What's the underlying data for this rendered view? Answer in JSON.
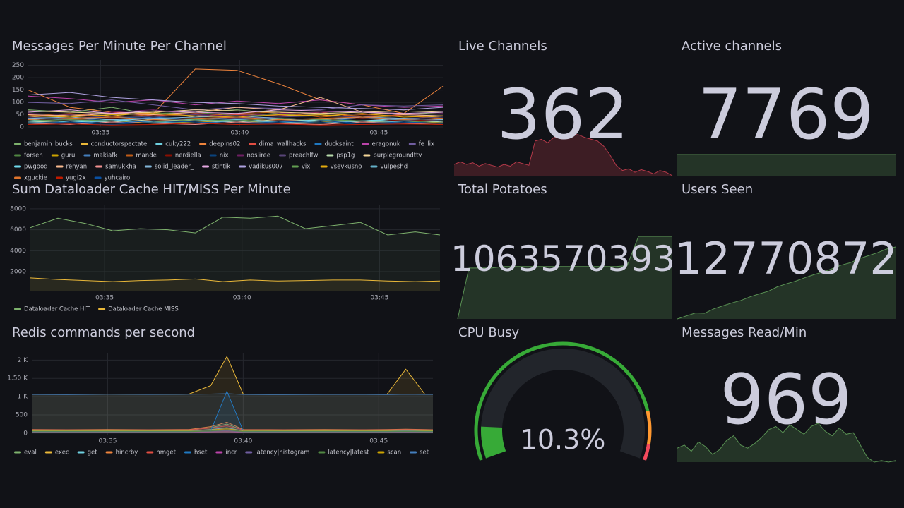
{
  "chart_data": [
    {
      "type": "line",
      "title": "Messages Per Minute Per Channel",
      "x": [
        32.4,
        33.9,
        35.4,
        36.9,
        38.4,
        39.9,
        41.4,
        42.9,
        44.4,
        45.9,
        47.3
      ],
      "xlim": [
        32.4,
        47.3
      ],
      "xticks": [
        {
          "value": 35,
          "label": "03:35"
        },
        {
          "value": 40,
          "label": "03:40"
        },
        {
          "value": 45,
          "label": "03:45"
        }
      ],
      "ylim": [
        0,
        272
      ],
      "yticks": [
        0,
        50,
        100,
        150,
        200,
        250
      ],
      "grid": true,
      "fill_opacity": 0,
      "series": [
        {
          "name": "benjamin_bucks",
          "color": "#7EB26D",
          "values": [
            70,
            60,
            80,
            50,
            60,
            70,
            55,
            60,
            65,
            50,
            60
          ]
        },
        {
          "name": "conductorspectate",
          "color": "#EAB839",
          "values": [
            40,
            50,
            45,
            60,
            40,
            55,
            45,
            50,
            40,
            45,
            40
          ]
        },
        {
          "name": "cuky222",
          "color": "#6ED0E0",
          "values": [
            20,
            25,
            30,
            20,
            25,
            30,
            25,
            20,
            25,
            30,
            20
          ]
        },
        {
          "name": "deepins02",
          "color": "#EF843C",
          "values": [
            150,
            80,
            60,
            55,
            235,
            230,
            175,
            110,
            90,
            55,
            165
          ]
        },
        {
          "name": "dima_wallhacks",
          "color": "#E24D42",
          "values": [
            50,
            40,
            60,
            45,
            55,
            50,
            45,
            60,
            40,
            50,
            45
          ]
        },
        {
          "name": "ducksaint",
          "color": "#1F78C1",
          "values": [
            30,
            35,
            25,
            40,
            30,
            35,
            30,
            25,
            35,
            30,
            25
          ]
        },
        {
          "name": "eragonuk",
          "color": "#BA43A9",
          "values": [
            125,
            115,
            100,
            110,
            90,
            105,
            95,
            110,
            90,
            80,
            85
          ]
        },
        {
          "name": "fe_lix__",
          "color": "#705DA0",
          "values": [
            100,
            95,
            110,
            90,
            70,
            80,
            75,
            70,
            90,
            85,
            90
          ]
        },
        {
          "name": "forsen",
          "color": "#508642",
          "values": [
            60,
            65,
            50,
            55,
            60,
            45,
            50,
            55,
            60,
            50,
            45
          ]
        },
        {
          "name": "guru",
          "color": "#CCA300",
          "values": [
            15,
            20,
            25,
            15,
            20,
            25,
            15,
            20,
            25,
            15,
            20
          ]
        },
        {
          "name": "makiafk",
          "color": "#447EBC",
          "values": [
            35,
            30,
            40,
            35,
            30,
            40,
            35,
            30,
            40,
            35,
            30
          ]
        },
        {
          "name": "mande",
          "color": "#C15C17",
          "values": [
            45,
            55,
            40,
            50,
            45,
            55,
            60,
            40,
            50,
            45,
            35
          ]
        },
        {
          "name": "nerdiella",
          "color": "#890F02",
          "values": [
            25,
            30,
            35,
            25,
            30,
            35,
            25,
            30,
            35,
            25,
            30
          ]
        },
        {
          "name": "nix",
          "color": "#0A437C",
          "values": [
            10,
            15,
            10,
            20,
            15,
            10,
            15,
            20,
            10,
            15,
            10
          ]
        },
        {
          "name": "nosliree",
          "color": "#6D1F62",
          "values": [
            55,
            50,
            60,
            70,
            50,
            45,
            55,
            60,
            65,
            50,
            55
          ]
        },
        {
          "name": "preachlfw",
          "color": "#584477",
          "values": [
            40,
            35,
            45,
            40,
            50,
            35,
            40,
            45,
            40,
            35,
            40
          ]
        },
        {
          "name": "psp1g",
          "color": "#B7DBAB",
          "values": [
            20,
            25,
            20,
            30,
            25,
            20,
            30,
            25,
            20,
            25,
            20
          ]
        },
        {
          "name": "purplegroundttv",
          "color": "#F4D598",
          "values": [
            65,
            60,
            55,
            60,
            70,
            65,
            60,
            55,
            60,
            65,
            60
          ]
        },
        {
          "name": "pwgood",
          "color": "#70DBED",
          "values": [
            30,
            20,
            25,
            35,
            30,
            25,
            20,
            30,
            25,
            35,
            30
          ]
        },
        {
          "name": "renyan",
          "color": "#F9BA8F",
          "values": [
            50,
            45,
            55,
            50,
            60,
            80,
            70,
            120,
            60,
            50,
            45
          ]
        },
        {
          "name": "samukkha",
          "color": "#F29191",
          "values": [
            15,
            10,
            20,
            15,
            10,
            20,
            15,
            10,
            20,
            15,
            10
          ]
        },
        {
          "name": "solid_leader_",
          "color": "#82B5D8",
          "values": [
            35,
            40,
            30,
            35,
            40,
            45,
            35,
            30,
            40,
            35,
            30
          ]
        },
        {
          "name": "stintik",
          "color": "#E5A8E2",
          "values": [
            60,
            70,
            55,
            65,
            60,
            55,
            70,
            65,
            60,
            55,
            60
          ]
        },
        {
          "name": "vadikus007",
          "color": "#AEA2E0",
          "values": [
            130,
            140,
            120,
            110,
            100,
            95,
            85,
            80,
            75,
            70,
            80
          ]
        },
        {
          "name": "vixi",
          "color": "#629E51",
          "values": [
            25,
            30,
            25,
            20,
            30,
            25,
            35,
            30,
            25,
            20,
            25
          ]
        },
        {
          "name": "vsevkusno",
          "color": "#E5AC0E",
          "values": [
            45,
            40,
            50,
            55,
            45,
            40,
            50,
            45,
            55,
            40,
            45
          ]
        },
        {
          "name": "vulpeshd",
          "color": "#64B0C8",
          "values": [
            20,
            15,
            25,
            20,
            15,
            25,
            20,
            15,
            25,
            20,
            15
          ]
        },
        {
          "name": "xguckie",
          "color": "#E0752D",
          "values": [
            30,
            35,
            40,
            30,
            35,
            40,
            30,
            35,
            40,
            30,
            35
          ]
        },
        {
          "name": "yugi2x",
          "color": "#BF1B00",
          "values": [
            10,
            12,
            8,
            10,
            15,
            10,
            12,
            8,
            10,
            12,
            10
          ]
        },
        {
          "name": "yuhcairo",
          "color": "#0A50A1",
          "values": [
            15,
            20,
            15,
            25,
            20,
            15,
            20,
            25,
            15,
            20,
            15
          ]
        }
      ]
    },
    {
      "type": "line",
      "title": "Sum Dataloader Cache HIT/MISS Per Minute",
      "x": [
        32.3,
        33.3,
        34.3,
        35.3,
        36.3,
        37.3,
        38.3,
        39.3,
        40.3,
        41.3,
        42.3,
        43.3,
        44.3,
        45.3,
        46.3,
        47.2
      ],
      "xlim": [
        32.3,
        47.2
      ],
      "xticks": [
        {
          "value": 35,
          "label": "03:35"
        },
        {
          "value": 40,
          "label": "03:40"
        },
        {
          "value": 45,
          "label": "03:45"
        }
      ],
      "ylim": [
        180,
        8400
      ],
      "yticks": [
        2000,
        4000,
        6000,
        8000
      ],
      "grid": true,
      "fill_opacity": 0.08,
      "series": [
        {
          "name": "Dataloader Cache HIT",
          "color": "#7EB26D",
          "values": [
            6200,
            7100,
            6600,
            5900,
            6100,
            6000,
            5700,
            7200,
            7100,
            7300,
            6100,
            6400,
            6700,
            5500,
            5800,
            5500
          ]
        },
        {
          "name": "Dataloader Cache MISS",
          "color": "#EAB839",
          "values": [
            1400,
            1250,
            1150,
            1050,
            1150,
            1200,
            1300,
            1050,
            1200,
            1100,
            1150,
            1200,
            1200,
            1100,
            1050,
            1100
          ]
        }
      ]
    },
    {
      "type": "line",
      "title": "Redis commands per second",
      "x": [
        32.2,
        33.5,
        35,
        36.5,
        38,
        38.8,
        39.4,
        40,
        41.5,
        43,
        44.5,
        45.3,
        46,
        46.7,
        47
      ],
      "xlim": [
        32.2,
        47
      ],
      "xticks": [
        {
          "value": 35,
          "label": "03:35"
        },
        {
          "value": 40,
          "label": "03:40"
        },
        {
          "value": 45,
          "label": "03:45"
        }
      ],
      "ylim": [
        -60,
        2200
      ],
      "yticks": [
        0,
        500,
        {
          "value": 1000,
          "label": "1 K"
        },
        {
          "value": 1500,
          "label": "1.50 K"
        },
        {
          "value": 2000,
          "label": "2 K"
        }
      ],
      "grid": true,
      "fill_opacity": 0.12,
      "series": [
        {
          "name": "eval",
          "color": "#7EB26D",
          "values": [
            80,
            80,
            85,
            80,
            80,
            150,
            250,
            80,
            80,
            85,
            80,
            80,
            90,
            80,
            80
          ]
        },
        {
          "name": "exec",
          "color": "#EAB839",
          "values": [
            1070,
            1060,
            1070,
            1065,
            1070,
            1300,
            2100,
            1070,
            1060,
            1070,
            1065,
            1060,
            1750,
            1070,
            1070
          ]
        },
        {
          "name": "get",
          "color": "#6ED0E0",
          "values": [
            60,
            60,
            65,
            60,
            60,
            100,
            150,
            60,
            60,
            65,
            60,
            60,
            70,
            60,
            60
          ]
        },
        {
          "name": "hincrby",
          "color": "#EF843C",
          "values": [
            100,
            95,
            100,
            95,
            100,
            180,
            300,
            100,
            95,
            100,
            95,
            100,
            110,
            100,
            95
          ]
        },
        {
          "name": "hmget",
          "color": "#E24D42",
          "values": [
            90,
            90,
            85,
            90,
            90,
            140,
            200,
            90,
            90,
            85,
            90,
            90,
            95,
            90,
            90
          ]
        },
        {
          "name": "hset",
          "color": "#1F78C1",
          "values": [
            50,
            50,
            50,
            50,
            50,
            60,
            1150,
            60,
            50,
            50,
            50,
            50,
            55,
            50,
            50
          ]
        },
        {
          "name": "incr",
          "color": "#BA43A9",
          "values": [
            20,
            20,
            25,
            20,
            20,
            30,
            40,
            20,
            20,
            25,
            20,
            20,
            25,
            20,
            20
          ]
        },
        {
          "name": "latency|histogram",
          "color": "#705DA0",
          "values": [
            30,
            30,
            30,
            30,
            30,
            50,
            70,
            30,
            30,
            30,
            30,
            30,
            35,
            30,
            30
          ]
        },
        {
          "name": "latency|latest",
          "color": "#508642",
          "values": [
            40,
            40,
            40,
            40,
            40,
            60,
            90,
            40,
            40,
            40,
            40,
            40,
            45,
            40,
            40
          ]
        },
        {
          "name": "scan",
          "color": "#CCA300",
          "values": [
            70,
            70,
            70,
            70,
            70,
            90,
            120,
            70,
            70,
            70,
            70,
            70,
            80,
            70,
            70
          ]
        },
        {
          "name": "set",
          "color": "#447EBC",
          "values": [
            1060,
            1055,
            1065,
            1060,
            1065,
            1070,
            1080,
            1060,
            1055,
            1060,
            1060,
            1055,
            1065,
            1060,
            1060
          ]
        }
      ]
    },
    {
      "type": "stat",
      "title": "Live Channels",
      "value": 362,
      "color": "#F2495C",
      "spark": [
        95,
        110,
        95,
        105,
        85,
        100,
        90,
        80,
        95,
        85,
        110,
        100,
        90,
        230,
        240,
        220,
        250,
        260,
        255,
        270,
        265,
        250,
        240,
        230,
        200,
        150,
        90,
        60,
        70,
        50,
        65,
        55,
        40,
        60,
        50,
        30
      ]
    },
    {
      "type": "stat",
      "title": "Active channels",
      "value": 7769,
      "color": "#73BF69",
      "spark": [
        7769,
        7769,
        7769,
        7769,
        7769,
        7769,
        7769,
        7769,
        7769,
        7769
      ]
    },
    {
      "type": "stat",
      "title": "Total Potatoes",
      "value": 1063570393,
      "color": "#73BF69",
      "spark": [
        1063400000,
        1063505000,
        1063505000,
        1063505000,
        1063508000,
        1063508000,
        1063508000,
        1063508000,
        1063508000,
        1063508000,
        1063508000,
        1063508000,
        1063508000,
        1063508000,
        1063508000,
        1063510000,
        1063570393,
        1063570393,
        1063570393,
        1063570393
      ]
    },
    {
      "type": "stat",
      "title": "Users Seen",
      "value": 12770872,
      "color": "#73BF69",
      "spark": [
        12735000,
        12736500,
        12738000,
        12737800,
        12740000,
        12741500,
        12743000,
        12744200,
        12746000,
        12747500,
        12748800,
        12751000,
        12752500,
        12753800,
        12755500,
        12757000,
        12758400,
        12760000,
        12761800,
        12763000,
        12765000,
        12766500,
        12768000,
        12769800,
        12770872
      ]
    },
    {
      "type": "gauge",
      "title": "CPU Busy",
      "value": 10.3,
      "value_label": "10.3%",
      "min": 0,
      "max": 100,
      "color": "#37AA37",
      "text_color": "#73BF69",
      "thresholds": [
        {
          "value": 85,
          "color": "#FF9830"
        },
        {
          "value": 95,
          "color": "#F2495C"
        }
      ]
    },
    {
      "type": "stat",
      "title": "Messages Read/Min",
      "value": 969,
      "color": "#73BF69",
      "spark": [
        780,
        800,
        760,
        820,
        790,
        740,
        770,
        830,
        860,
        800,
        780,
        810,
        850,
        900,
        920,
        880,
        930,
        900,
        870,
        920,
        940,
        890,
        860,
        910,
        870,
        880,
        800,
        720,
        690,
        700,
        690,
        700
      ]
    }
  ]
}
